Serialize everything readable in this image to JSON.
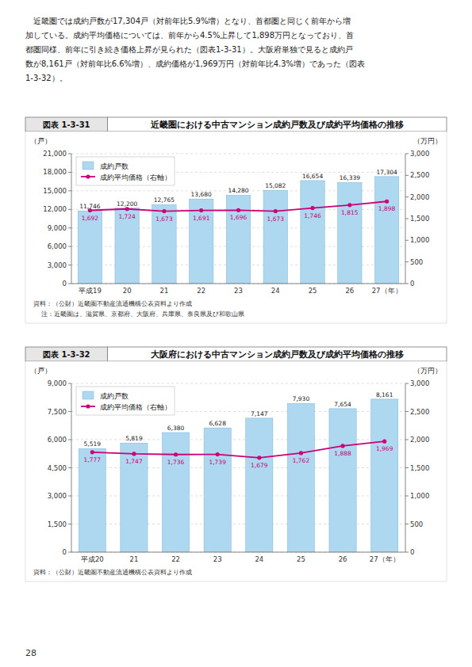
{
  "body_text": [
    "　近畿圏では成約戸数が17,304戸（対前年比5.9%増）となり、首都圏と同じく前年から増",
    "加している。成約平均価格については、前年から4.5%上昇して1,898万円となっており、首",
    "都圏同様、前年に引き続き価格上昇が見られた（図表1-3-31）。大阪府単独で見ると成約戸",
    "数が8,161戸（対前年比6.6%増）、成約価格が1,969万円（対前年比4.3%増）であった（図表",
    "1-3-32）。"
  ],
  "page_number": "28",
  "chart_data": [
    {
      "type": "bar",
      "figure_number": "図表 1-3-31",
      "title": "近畿圏における中古マンション成約戸数及び成約平均価格の推移",
      "categories": [
        "平成19",
        "20",
        "21",
        "22",
        "23",
        "24",
        "25",
        "26",
        "27（年）"
      ],
      "series": [
        {
          "name": "成約戸数",
          "type": "bar",
          "color": "#add8f0",
          "values": [
            11746,
            12200,
            12765,
            13680,
            14280,
            15082,
            16654,
            16339,
            17304
          ],
          "value_labels": [
            "11,746",
            "12,200",
            "12,765",
            "13,680",
            "14,280",
            "15,082",
            "16,654",
            "16,339",
            "17,304"
          ]
        },
        {
          "name": "成約平均価格（右軸）",
          "type": "line",
          "axis": "y2",
          "color": "#cc0077",
          "marker": "circle",
          "line_style": "solid",
          "values": [
            1692,
            1724,
            1673,
            1691,
            1696,
            1673,
            1746,
            1815,
            1898
          ],
          "value_labels": [
            "1,692",
            "1,724",
            "1,673",
            "1,691",
            "1,696",
            "1,673",
            "1,746",
            "1,815",
            "1,898"
          ]
        }
      ],
      "ylabel": "（戸）",
      "y2label": "（万円）",
      "ylim": [
        0,
        21000
      ],
      "yticks": [
        0,
        {
          "value": 3000,
          "label": "3,000"
        },
        {
          "value": 6000,
          "label": "6,000"
        },
        {
          "value": 9000,
          "label": "9,000"
        },
        {
          "value": 12000,
          "label": "12,000"
        },
        {
          "value": 15000,
          "label": "15,000"
        },
        {
          "value": 18000,
          "label": "18,000"
        },
        {
          "value": 21000,
          "label": "21,000"
        }
      ],
      "y2lim": [
        0,
        3000
      ],
      "y2ticks": [
        0,
        500,
        {
          "value": 1000,
          "label": "1,000"
        },
        {
          "value": 1500,
          "label": "1,500"
        },
        {
          "value": 2000,
          "label": "2,000"
        },
        {
          "value": 2500,
          "label": "2,500"
        },
        {
          "value": 3000,
          "label": "3,000"
        }
      ],
      "grid": true,
      "legend": "upper left",
      "data_labels": true,
      "annotations": [
        "資料：（公財）近畿圏不動産流通機構公表資料より作成",
        "注：近畿圏は、滋賀県、京都府、大阪府、兵庫県、奈良県及び和歌山県"
      ]
    },
    {
      "type": "bar",
      "figure_number": "図表 1-3-32",
      "title": "大阪府における中古マンション成約戸数及び成約平均価格の推移",
      "categories": [
        "平成20",
        "21",
        "22",
        "23",
        "24",
        "25",
        "26",
        "27（年）"
      ],
      "series": [
        {
          "name": "成約戸数",
          "type": "bar",
          "color": "#add8f0",
          "values": [
            5519,
            5819,
            6380,
            6628,
            7147,
            7930,
            7654,
            8161
          ],
          "value_labels": [
            "5,519",
            "5,819",
            "6,380",
            "6,628",
            "7,147",
            "7,930",
            "7,654",
            "8,161"
          ]
        },
        {
          "name": "成約平均価格（右軸）",
          "type": "line",
          "axis": "y2",
          "color": "#cc0077",
          "marker": "circle",
          "line_style": "solid",
          "values": [
            1777,
            1747,
            1736,
            1739,
            1679,
            1762,
            1888,
            1969
          ],
          "value_labels": [
            "1,777",
            "1,747",
            "1,736",
            "1,739",
            "1,679",
            "1,762",
            "1,888",
            "1,969"
          ]
        }
      ],
      "ylabel": "（戸）",
      "y2label": "（万円）",
      "ylim": [
        0,
        9000
      ],
      "yticks": [
        0,
        {
          "value": 1500,
          "label": "1,500"
        },
        {
          "value": 3000,
          "label": "3,000"
        },
        {
          "value": 4500,
          "label": "4,500"
        },
        {
          "value": 6000,
          "label": "6,000"
        },
        {
          "value": 7500,
          "label": "7,500"
        },
        {
          "value": 9000,
          "label": "9,000"
        }
      ],
      "y2lim": [
        0,
        3000
      ],
      "y2ticks": [
        0,
        500,
        {
          "value": 1000,
          "label": "1,000"
        },
        {
          "value": 1500,
          "label": "1,500"
        },
        {
          "value": 2000,
          "label": "2,000"
        },
        {
          "value": 2500,
          "label": "2,500"
        },
        {
          "value": 3000,
          "label": "3,000"
        }
      ],
      "grid": true,
      "legend": "upper left",
      "data_labels": true,
      "annotations": [
        "資料：（公財）近畿圏不動産流通機構公表資料より作成"
      ]
    }
  ]
}
